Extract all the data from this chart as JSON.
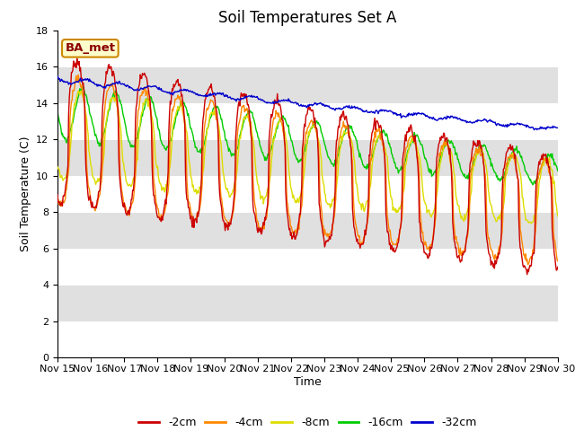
{
  "title": "Soil Temperatures Set A",
  "xlabel": "Time",
  "ylabel": "Soil Temperature (C)",
  "ylim": [
    0,
    18
  ],
  "yticks": [
    0,
    2,
    4,
    6,
    8,
    10,
    12,
    14,
    16,
    18
  ],
  "x_labels": [
    "Nov 15",
    "Nov 16",
    "Nov 17",
    "Nov 18",
    "Nov 19",
    "Nov 20",
    "Nov 21",
    "Nov 22",
    "Nov 23",
    "Nov 24",
    "Nov 25",
    "Nov 26",
    "Nov 27",
    "Nov 28",
    "Nov 29",
    "Nov 30"
  ],
  "legend_labels": [
    "-2cm",
    "-4cm",
    "-8cm",
    "-16cm",
    "-32cm"
  ],
  "line_colors": [
    "#cc0000",
    "#ff8800",
    "#dddd00",
    "#00cc00",
    "#0000cc"
  ],
  "annotation_text": "BA_met",
  "annotation_bg": "#ffffcc",
  "annotation_border": "#cc8800",
  "bg_color": "#ffffff",
  "stripe_color": "#e0e0e0",
  "title_fontsize": 12,
  "axis_fontsize": 9,
  "tick_fontsize": 8
}
